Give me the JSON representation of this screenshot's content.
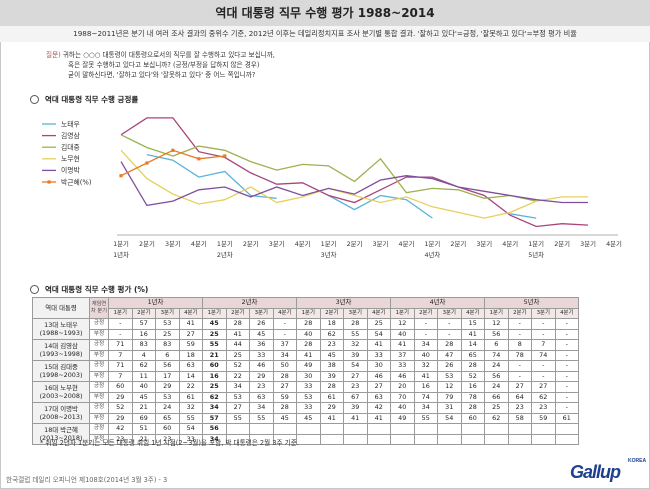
{
  "title": "역대 대통령 직무 수행 평가 1988~2014",
  "subtitle": "1988~2011년은 분기 내 여러 조사 결과의 중위수 기준, 2012년 이후는 데일리정치지표 조사 분기별 통합 결과. '잘하고 있다'=긍정, '잘못하고 있다'=부정 평가 비율",
  "question": {
    "tag": "질문)",
    "lines": [
      "귀하는 ○○○ 대통령이 대통령으로서의 직무를 잘 수행하고 있다고 보십니까,",
      "혹은 잘못 수행하고 있다고 보십니까? (긍정/부정을 답하지 않은 경우)",
      "굳이 말하신다면, '잘하고 있다'와 '잘못하고 있다' 중 어느 쪽입니까?"
    ]
  },
  "section1_title": "역대 대통령 직무 수행 긍정률",
  "section2_title": "역대 대통령 직무 수행 평가 (%)",
  "chart_data": {
    "type": "line",
    "x": [
      "1분기",
      "2분기",
      "3분기",
      "4분기",
      "1분기",
      "2분기",
      "3분기",
      "4분기",
      "1분기",
      "2분기",
      "3분기",
      "4분기",
      "1분기",
      "2분기",
      "3분기",
      "4분기",
      "1분기",
      "2분기",
      "3분기",
      "4분기"
    ],
    "year_labels": [
      "1년차",
      "2년차",
      "3년차",
      "4년차",
      "5년차"
    ],
    "ylim": [
      0,
      90
    ],
    "series": [
      {
        "name": "노태우",
        "color": "#5bb3d9",
        "values": [
          null,
          57,
          53,
          41,
          45,
          28,
          26,
          null,
          28,
          18,
          28,
          25,
          12,
          null,
          null,
          15,
          12,
          null,
          null,
          null
        ]
      },
      {
        "name": "김영삼",
        "color": "#a8457a",
        "values": [
          71,
          83,
          83,
          59,
          55,
          44,
          36,
          37,
          28,
          23,
          32,
          41,
          41,
          34,
          28,
          14,
          6,
          8,
          7,
          null
        ]
      },
      {
        "name": "김대중",
        "color": "#9db24c",
        "values": [
          71,
          62,
          56,
          63,
          60,
          52,
          46,
          50,
          49,
          38,
          54,
          30,
          33,
          32,
          26,
          28,
          24,
          null,
          null,
          null
        ]
      },
      {
        "name": "노무현",
        "color": "#e6d05a",
        "values": [
          60,
          40,
          29,
          22,
          25,
          34,
          23,
          27,
          33,
          28,
          23,
          27,
          20,
          16,
          12,
          16,
          24,
          27,
          27,
          null
        ]
      },
      {
        "name": "이명박",
        "color": "#7f4f9f",
        "values": [
          52,
          21,
          24,
          32,
          34,
          27,
          34,
          28,
          33,
          29,
          39,
          42,
          40,
          34,
          31,
          28,
          25,
          23,
          23,
          null
        ]
      },
      {
        "name": "박근혜(%)",
        "color": "#e87a27",
        "values": [
          42,
          51,
          60,
          54,
          56,
          null,
          null,
          null,
          null,
          null,
          null,
          null,
          null,
          null,
          null,
          null,
          null,
          null,
          null,
          null
        ]
      }
    ]
  },
  "table": {
    "col_president": "역대 대통령",
    "col_type": "재임연차 분기",
    "years": [
      "1년차",
      "2년차",
      "3년차",
      "4년차",
      "5년차"
    ],
    "quarters": [
      "1분기",
      "2분기",
      "3분기",
      "4분기",
      "1분기",
      "2분기",
      "3분기",
      "4분기",
      "1분기",
      "2분기",
      "3분기",
      "4분기",
      "1분기",
      "2분기",
      "3분기",
      "4분기",
      "1분기",
      "2분기",
      "3분기",
      "4분기"
    ],
    "label_pos": "긍정",
    "label_neg": "부정",
    "presidents": [
      {
        "name": "13대 노태우",
        "term": "(1988~1993)",
        "pos": [
          "-",
          "57",
          "53",
          "41",
          "45",
          "28",
          "26",
          "-",
          "28",
          "18",
          "28",
          "25",
          "12",
          "-",
          "-",
          "15",
          "12",
          "-",
          "-",
          "-"
        ],
        "neg": [
          "-",
          "16",
          "25",
          "27",
          "25",
          "41",
          "45",
          "-",
          "40",
          "62",
          "55",
          "54",
          "40",
          "-",
          "-",
          "41",
          "56",
          "-",
          "-",
          "-"
        ]
      },
      {
        "name": "14대 김영삼",
        "term": "(1993~1998)",
        "pos": [
          "71",
          "83",
          "83",
          "59",
          "55",
          "44",
          "36",
          "37",
          "28",
          "23",
          "32",
          "41",
          "41",
          "34",
          "28",
          "14",
          "6",
          "8",
          "7",
          "-"
        ],
        "neg": [
          "7",
          "4",
          "6",
          "18",
          "21",
          "25",
          "33",
          "34",
          "41",
          "45",
          "39",
          "33",
          "37",
          "40",
          "47",
          "65",
          "74",
          "78",
          "74",
          "-"
        ]
      },
      {
        "name": "15대 김대중",
        "term": "(1998~2003)",
        "pos": [
          "71",
          "62",
          "56",
          "63",
          "60",
          "52",
          "46",
          "50",
          "49",
          "38",
          "54",
          "30",
          "33",
          "32",
          "26",
          "28",
          "24",
          "-",
          "-",
          "-"
        ],
        "neg": [
          "7",
          "11",
          "17",
          "14",
          "16",
          "22",
          "29",
          "28",
          "30",
          "39",
          "27",
          "46",
          "46",
          "41",
          "53",
          "52",
          "56",
          "-",
          "-",
          "-"
        ]
      },
      {
        "name": "16대 노무현",
        "term": "(2003~2008)",
        "pos": [
          "60",
          "40",
          "29",
          "22",
          "25",
          "34",
          "23",
          "27",
          "33",
          "28",
          "23",
          "27",
          "20",
          "16",
          "12",
          "16",
          "24",
          "27",
          "27",
          "-"
        ],
        "neg": [
          "29",
          "45",
          "53",
          "61",
          "62",
          "53",
          "63",
          "59",
          "53",
          "61",
          "67",
          "63",
          "70",
          "74",
          "79",
          "78",
          "66",
          "64",
          "62",
          "-"
        ]
      },
      {
        "name": "17대 이명박",
        "term": "(2008~2013)",
        "pos": [
          "52",
          "21",
          "24",
          "32",
          "34",
          "27",
          "34",
          "28",
          "33",
          "29",
          "39",
          "42",
          "40",
          "34",
          "31",
          "28",
          "25",
          "23",
          "23",
          "-"
        ],
        "neg": [
          "29",
          "69",
          "65",
          "55",
          "57",
          "55",
          "55",
          "45",
          "45",
          "41",
          "41",
          "41",
          "49",
          "55",
          "54",
          "60",
          "62",
          "58",
          "59",
          "61"
        ]
      },
      {
        "name": "18대 박근혜",
        "term": "(2013~2018)",
        "pos": [
          "42",
          "51",
          "60",
          "54",
          "56",
          "",
          "",
          "",
          "",
          "",
          "",
          "",
          "",
          "",
          "",
          "",
          "",
          "",
          "",
          ""
        ],
        "neg": [
          "23",
          "21",
          "23",
          "33",
          "34",
          "",
          "",
          "",
          "",
          "",
          "",
          "",
          "",
          "",
          "",
          "",
          "",
          "",
          "",
          ""
        ]
      }
    ]
  },
  "note": "* 취임 2년차 1분기는 모든 대통령 취임 1년 시점(2~3월)을 포함, 박 대통령은 2월 3주 기준.",
  "footer": "한국갤럽 데일리 오피니언 제108호(2014년 3월 3주) - 3",
  "logo_text": "Gallup",
  "logo_sub": "KOREA"
}
